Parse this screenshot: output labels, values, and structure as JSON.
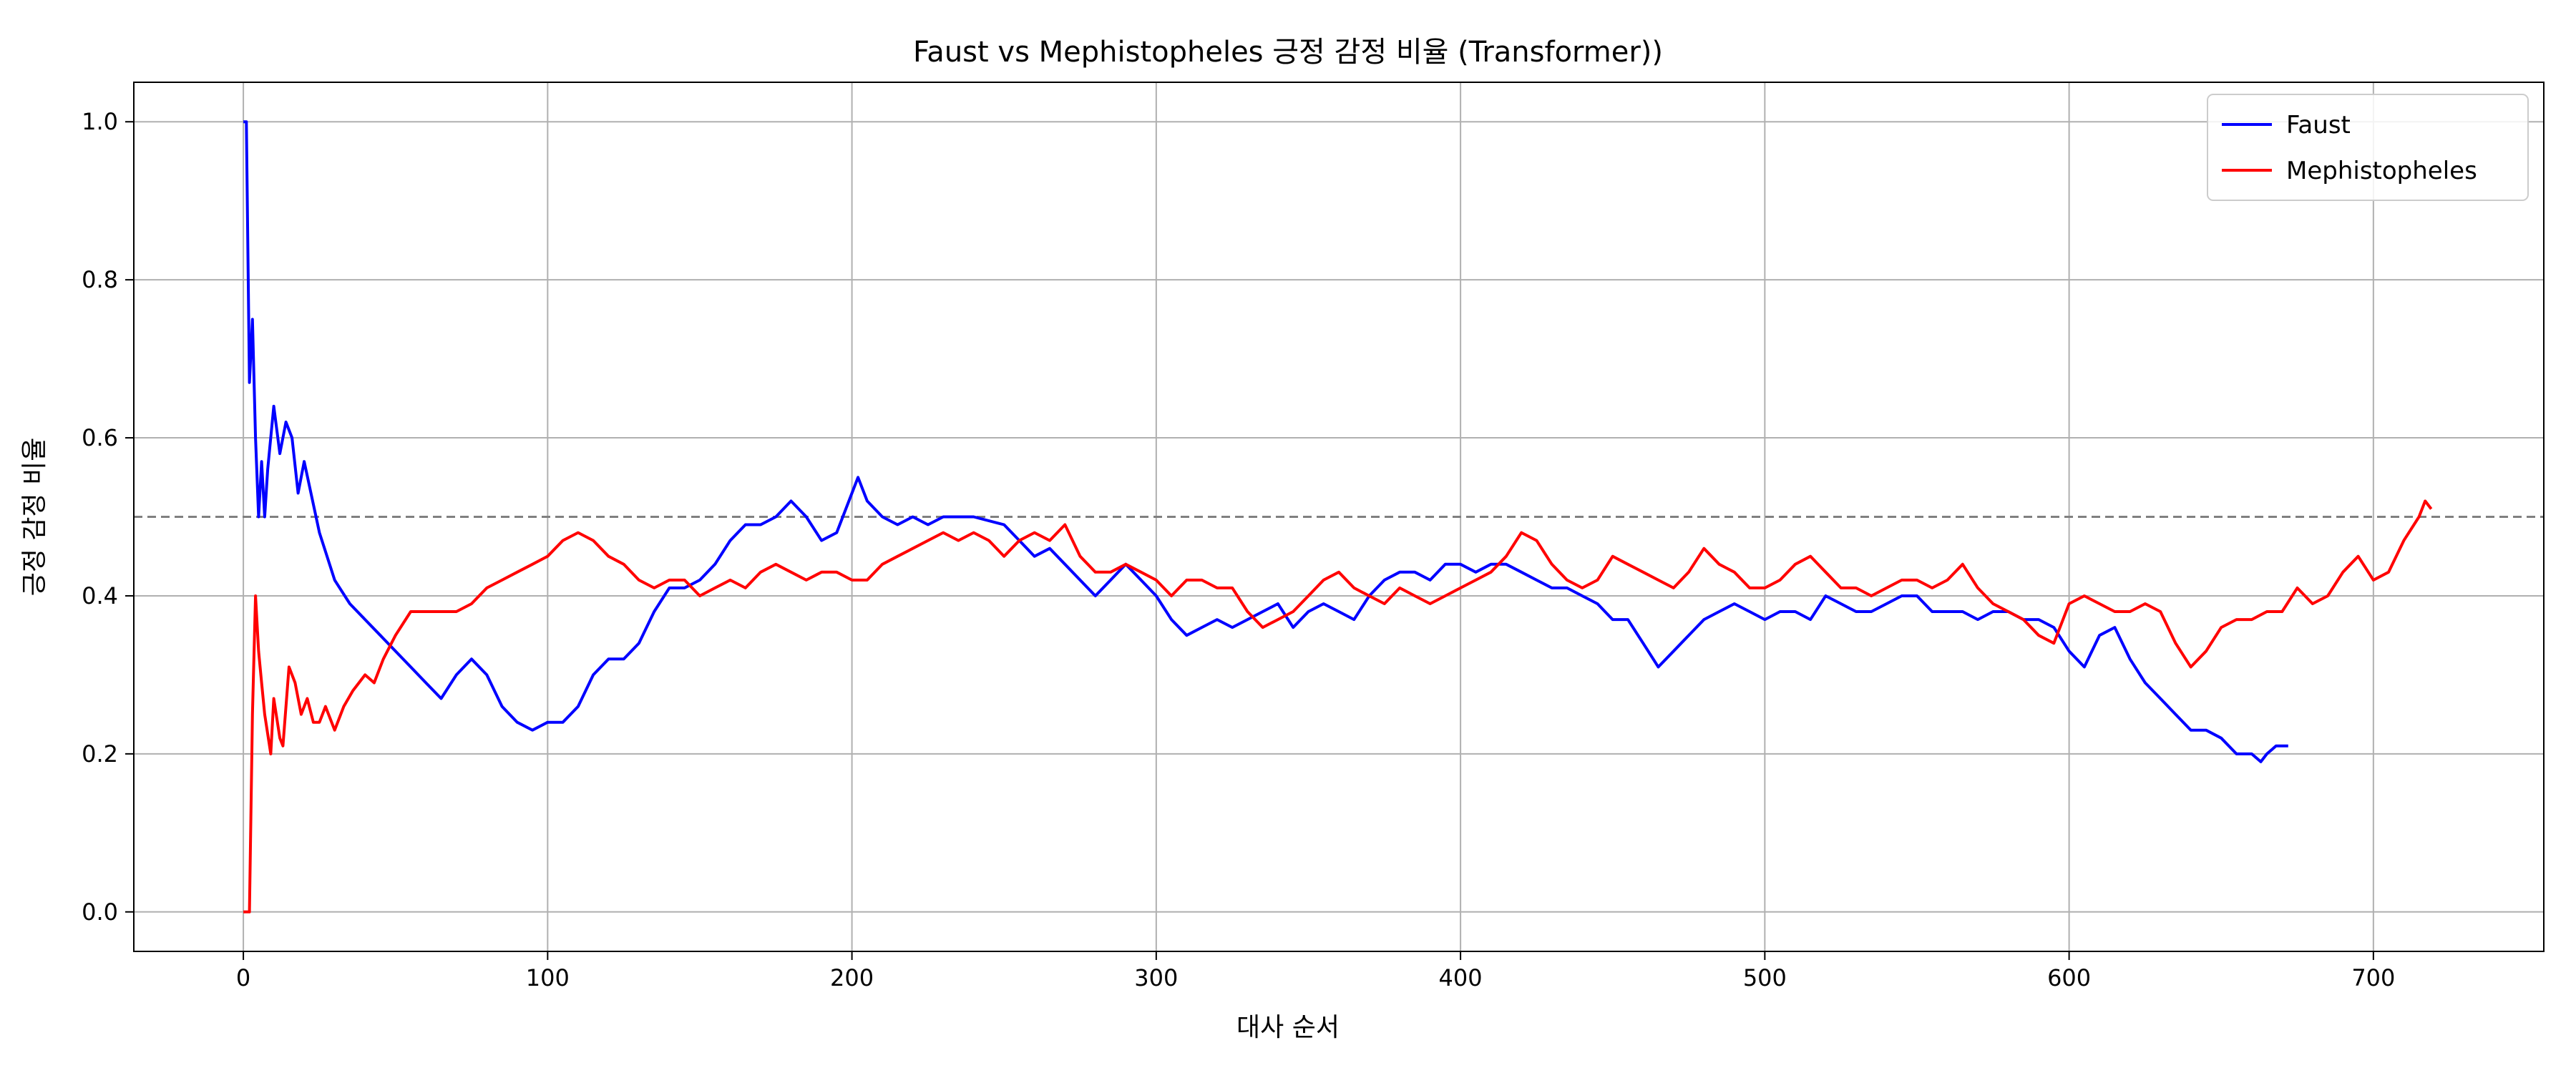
{
  "chart_data": {
    "type": "line",
    "title": "Faust vs Mephistopheles 긍정 감정 비율 (Transformer))",
    "xlabel": "대사 순서",
    "ylabel": "긍정 감정 비율",
    "xlim": [
      -36,
      756
    ],
    "ylim": [
      -0.05,
      1.05
    ],
    "x_ticks": [
      0,
      100,
      200,
      300,
      400,
      500,
      600,
      700
    ],
    "y_ticks": [
      0.0,
      0.2,
      0.4,
      0.6,
      0.8,
      1.0
    ],
    "x_tick_labels": [
      "0",
      "100",
      "200",
      "300",
      "400",
      "500",
      "600",
      "700"
    ],
    "y_tick_labels": [
      "0.0",
      "0.2",
      "0.4",
      "0.6",
      "0.8",
      "1.0"
    ],
    "grid": true,
    "legend_position": "top-right",
    "reference_line": {
      "y": 0.5,
      "style": "dashed",
      "color": "#808080"
    },
    "series": [
      {
        "name": "Faust",
        "color": "#0000ff",
        "points": [
          [
            0,
            1.0
          ],
          [
            1,
            1.0
          ],
          [
            2,
            0.67
          ],
          [
            3,
            0.75
          ],
          [
            4,
            0.6
          ],
          [
            5,
            0.5
          ],
          [
            6,
            0.57
          ],
          [
            7,
            0.5
          ],
          [
            8,
            0.56
          ],
          [
            10,
            0.64
          ],
          [
            12,
            0.58
          ],
          [
            14,
            0.62
          ],
          [
            16,
            0.6
          ],
          [
            18,
            0.53
          ],
          [
            20,
            0.57
          ],
          [
            25,
            0.48
          ],
          [
            30,
            0.42
          ],
          [
            35,
            0.39
          ],
          [
            40,
            0.37
          ],
          [
            45,
            0.35
          ],
          [
            50,
            0.33
          ],
          [
            55,
            0.31
          ],
          [
            60,
            0.29
          ],
          [
            65,
            0.27
          ],
          [
            70,
            0.3
          ],
          [
            75,
            0.32
          ],
          [
            80,
            0.3
          ],
          [
            85,
            0.26
          ],
          [
            90,
            0.24
          ],
          [
            95,
            0.23
          ],
          [
            100,
            0.24
          ],
          [
            105,
            0.24
          ],
          [
            110,
            0.26
          ],
          [
            115,
            0.3
          ],
          [
            120,
            0.32
          ],
          [
            125,
            0.32
          ],
          [
            130,
            0.34
          ],
          [
            135,
            0.38
          ],
          [
            140,
            0.41
          ],
          [
            145,
            0.41
          ],
          [
            150,
            0.42
          ],
          [
            155,
            0.44
          ],
          [
            160,
            0.47
          ],
          [
            165,
            0.49
          ],
          [
            170,
            0.49
          ],
          [
            175,
            0.5
          ],
          [
            180,
            0.52
          ],
          [
            185,
            0.5
          ],
          [
            190,
            0.47
          ],
          [
            195,
            0.48
          ],
          [
            200,
            0.53
          ],
          [
            202,
            0.55
          ],
          [
            205,
            0.52
          ],
          [
            210,
            0.5
          ],
          [
            215,
            0.49
          ],
          [
            220,
            0.5
          ],
          [
            225,
            0.49
          ],
          [
            230,
            0.5
          ],
          [
            240,
            0.5
          ],
          [
            250,
            0.49
          ],
          [
            255,
            0.47
          ],
          [
            260,
            0.45
          ],
          [
            265,
            0.46
          ],
          [
            270,
            0.44
          ],
          [
            275,
            0.42
          ],
          [
            280,
            0.4
          ],
          [
            285,
            0.42
          ],
          [
            290,
            0.44
          ],
          [
            295,
            0.42
          ],
          [
            300,
            0.4
          ],
          [
            305,
            0.37
          ],
          [
            310,
            0.35
          ],
          [
            315,
            0.36
          ],
          [
            320,
            0.37
          ],
          [
            325,
            0.36
          ],
          [
            330,
            0.37
          ],
          [
            335,
            0.38
          ],
          [
            340,
            0.39
          ],
          [
            345,
            0.36
          ],
          [
            350,
            0.38
          ],
          [
            355,
            0.39
          ],
          [
            360,
            0.38
          ],
          [
            365,
            0.37
          ],
          [
            370,
            0.4
          ],
          [
            375,
            0.42
          ],
          [
            380,
            0.43
          ],
          [
            385,
            0.43
          ],
          [
            390,
            0.42
          ],
          [
            395,
            0.44
          ],
          [
            400,
            0.44
          ],
          [
            405,
            0.43
          ],
          [
            410,
            0.44
          ],
          [
            415,
            0.44
          ],
          [
            420,
            0.43
          ],
          [
            425,
            0.42
          ],
          [
            430,
            0.41
          ],
          [
            435,
            0.41
          ],
          [
            440,
            0.4
          ],
          [
            445,
            0.39
          ],
          [
            450,
            0.37
          ],
          [
            455,
            0.37
          ],
          [
            460,
            0.34
          ],
          [
            465,
            0.31
          ],
          [
            470,
            0.33
          ],
          [
            475,
            0.35
          ],
          [
            480,
            0.37
          ],
          [
            485,
            0.38
          ],
          [
            490,
            0.39
          ],
          [
            495,
            0.38
          ],
          [
            500,
            0.37
          ],
          [
            505,
            0.38
          ],
          [
            510,
            0.38
          ],
          [
            515,
            0.37
          ],
          [
            520,
            0.4
          ],
          [
            525,
            0.39
          ],
          [
            530,
            0.38
          ],
          [
            535,
            0.38
          ],
          [
            540,
            0.39
          ],
          [
            545,
            0.4
          ],
          [
            550,
            0.4
          ],
          [
            555,
            0.38
          ],
          [
            560,
            0.38
          ],
          [
            565,
            0.38
          ],
          [
            570,
            0.37
          ],
          [
            575,
            0.38
          ],
          [
            580,
            0.38
          ],
          [
            585,
            0.37
          ],
          [
            590,
            0.37
          ],
          [
            595,
            0.36
          ],
          [
            600,
            0.33
          ],
          [
            605,
            0.31
          ],
          [
            610,
            0.35
          ],
          [
            615,
            0.36
          ],
          [
            620,
            0.32
          ],
          [
            625,
            0.29
          ],
          [
            630,
            0.27
          ],
          [
            635,
            0.25
          ],
          [
            640,
            0.23
          ],
          [
            645,
            0.23
          ],
          [
            650,
            0.22
          ],
          [
            655,
            0.2
          ],
          [
            660,
            0.2
          ],
          [
            663,
            0.19
          ],
          [
            665,
            0.2
          ],
          [
            668,
            0.21
          ],
          [
            672,
            0.21
          ]
        ]
      },
      {
        "name": "Mephistopheles",
        "color": "#ff0000",
        "points": [
          [
            0,
            0.0
          ],
          [
            2,
            0.0
          ],
          [
            3,
            0.25
          ],
          [
            4,
            0.4
          ],
          [
            5,
            0.33
          ],
          [
            6,
            0.29
          ],
          [
            7,
            0.25
          ],
          [
            9,
            0.2
          ],
          [
            10,
            0.27
          ],
          [
            12,
            0.22
          ],
          [
            13,
            0.21
          ],
          [
            15,
            0.31
          ],
          [
            17,
            0.29
          ],
          [
            19,
            0.25
          ],
          [
            21,
            0.27
          ],
          [
            23,
            0.24
          ],
          [
            25,
            0.24
          ],
          [
            27,
            0.26
          ],
          [
            30,
            0.23
          ],
          [
            33,
            0.26
          ],
          [
            36,
            0.28
          ],
          [
            40,
            0.3
          ],
          [
            43,
            0.29
          ],
          [
            46,
            0.32
          ],
          [
            50,
            0.35
          ],
          [
            55,
            0.38
          ],
          [
            60,
            0.38
          ],
          [
            65,
            0.38
          ],
          [
            70,
            0.38
          ],
          [
            75,
            0.39
          ],
          [
            80,
            0.41
          ],
          [
            85,
            0.42
          ],
          [
            90,
            0.43
          ],
          [
            95,
            0.44
          ],
          [
            100,
            0.45
          ],
          [
            105,
            0.47
          ],
          [
            110,
            0.48
          ],
          [
            115,
            0.47
          ],
          [
            120,
            0.45
          ],
          [
            125,
            0.44
          ],
          [
            130,
            0.42
          ],
          [
            135,
            0.41
          ],
          [
            140,
            0.42
          ],
          [
            145,
            0.42
          ],
          [
            150,
            0.4
          ],
          [
            155,
            0.41
          ],
          [
            160,
            0.42
          ],
          [
            165,
            0.41
          ],
          [
            170,
            0.43
          ],
          [
            175,
            0.44
          ],
          [
            180,
            0.43
          ],
          [
            185,
            0.42
          ],
          [
            190,
            0.43
          ],
          [
            195,
            0.43
          ],
          [
            200,
            0.42
          ],
          [
            205,
            0.42
          ],
          [
            210,
            0.44
          ],
          [
            215,
            0.45
          ],
          [
            220,
            0.46
          ],
          [
            225,
            0.47
          ],
          [
            230,
            0.48
          ],
          [
            235,
            0.47
          ],
          [
            240,
            0.48
          ],
          [
            245,
            0.47
          ],
          [
            250,
            0.45
          ],
          [
            255,
            0.47
          ],
          [
            260,
            0.48
          ],
          [
            265,
            0.47
          ],
          [
            270,
            0.49
          ],
          [
            275,
            0.45
          ],
          [
            280,
            0.43
          ],
          [
            285,
            0.43
          ],
          [
            290,
            0.44
          ],
          [
            295,
            0.43
          ],
          [
            300,
            0.42
          ],
          [
            305,
            0.4
          ],
          [
            310,
            0.42
          ],
          [
            315,
            0.42
          ],
          [
            320,
            0.41
          ],
          [
            325,
            0.41
          ],
          [
            330,
            0.38
          ],
          [
            335,
            0.36
          ],
          [
            340,
            0.37
          ],
          [
            345,
            0.38
          ],
          [
            350,
            0.4
          ],
          [
            355,
            0.42
          ],
          [
            360,
            0.43
          ],
          [
            365,
            0.41
          ],
          [
            370,
            0.4
          ],
          [
            375,
            0.39
          ],
          [
            380,
            0.41
          ],
          [
            385,
            0.4
          ],
          [
            390,
            0.39
          ],
          [
            395,
            0.4
          ],
          [
            400,
            0.41
          ],
          [
            405,
            0.42
          ],
          [
            410,
            0.43
          ],
          [
            415,
            0.45
          ],
          [
            420,
            0.48
          ],
          [
            425,
            0.47
          ],
          [
            430,
            0.44
          ],
          [
            435,
            0.42
          ],
          [
            440,
            0.41
          ],
          [
            445,
            0.42
          ],
          [
            450,
            0.45
          ],
          [
            455,
            0.44
          ],
          [
            460,
            0.43
          ],
          [
            465,
            0.42
          ],
          [
            470,
            0.41
          ],
          [
            475,
            0.43
          ],
          [
            480,
            0.46
          ],
          [
            485,
            0.44
          ],
          [
            490,
            0.43
          ],
          [
            495,
            0.41
          ],
          [
            500,
            0.41
          ],
          [
            505,
            0.42
          ],
          [
            510,
            0.44
          ],
          [
            515,
            0.45
          ],
          [
            520,
            0.43
          ],
          [
            525,
            0.41
          ],
          [
            530,
            0.41
          ],
          [
            535,
            0.4
          ],
          [
            540,
            0.41
          ],
          [
            545,
            0.42
          ],
          [
            550,
            0.42
          ],
          [
            555,
            0.41
          ],
          [
            560,
            0.42
          ],
          [
            565,
            0.44
          ],
          [
            570,
            0.41
          ],
          [
            575,
            0.39
          ],
          [
            580,
            0.38
          ],
          [
            585,
            0.37
          ],
          [
            590,
            0.35
          ],
          [
            595,
            0.34
          ],
          [
            600,
            0.39
          ],
          [
            605,
            0.4
          ],
          [
            610,
            0.39
          ],
          [
            615,
            0.38
          ],
          [
            620,
            0.38
          ],
          [
            625,
            0.39
          ],
          [
            630,
            0.38
          ],
          [
            635,
            0.34
          ],
          [
            640,
            0.31
          ],
          [
            645,
            0.33
          ],
          [
            650,
            0.36
          ],
          [
            655,
            0.37
          ],
          [
            660,
            0.37
          ],
          [
            665,
            0.38
          ],
          [
            670,
            0.38
          ],
          [
            675,
            0.41
          ],
          [
            680,
            0.39
          ],
          [
            685,
            0.4
          ],
          [
            690,
            0.43
          ],
          [
            695,
            0.45
          ],
          [
            700,
            0.42
          ],
          [
            705,
            0.43
          ],
          [
            710,
            0.47
          ],
          [
            715,
            0.5
          ],
          [
            717,
            0.52
          ],
          [
            719,
            0.51
          ]
        ]
      }
    ]
  }
}
